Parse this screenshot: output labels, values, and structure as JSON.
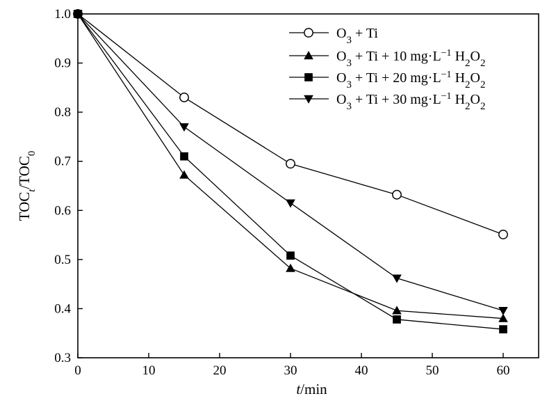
{
  "chart_data": {
    "type": "line",
    "x_label": {
      "italic": "t",
      "rest": "/min"
    },
    "y_label": {
      "base1": "TOC",
      "sub1": "t",
      "mid": "/TOC",
      "sub2": "0"
    },
    "xlim": [
      0,
      65
    ],
    "ylim": [
      0.3,
      1.0
    ],
    "x_ticks": [
      0,
      10,
      20,
      30,
      40,
      50,
      60
    ],
    "y_ticks": [
      0.3,
      0.4,
      0.5,
      0.6,
      0.7,
      0.8,
      0.9,
      1.0
    ],
    "x_tick_labels": [
      "0",
      "10",
      "20",
      "30",
      "40",
      "50",
      "60"
    ],
    "y_tick_labels": [
      "0.3",
      "0.4",
      "0.5",
      "0.6",
      "0.7",
      "0.8",
      "0.9",
      "1.0"
    ],
    "grid": false,
    "legend_position": "top-right",
    "x": [
      0,
      15,
      30,
      45,
      60
    ],
    "series": [
      {
        "marker": "circle-open",
        "color": "#000000",
        "legend": [
          {
            "t": "O"
          },
          {
            "t": "3",
            "sub": true
          },
          {
            "t": " + Ti"
          }
        ],
        "values": [
          1.0,
          0.83,
          0.695,
          0.632,
          0.551
        ]
      },
      {
        "marker": "triangle-up",
        "color": "#000000",
        "legend": [
          {
            "t": "O"
          },
          {
            "t": "3",
            "sub": true
          },
          {
            "t": " + Ti + 10 mg·L"
          },
          {
            "t": "−1",
            "sup": true
          },
          {
            "t": " H"
          },
          {
            "t": "2",
            "sub": true
          },
          {
            "t": "O"
          },
          {
            "t": "2",
            "sub": true
          }
        ],
        "values": [
          1.0,
          0.672,
          0.482,
          0.396,
          0.38
        ]
      },
      {
        "marker": "square",
        "color": "#000000",
        "legend": [
          {
            "t": "O"
          },
          {
            "t": "3",
            "sub": true
          },
          {
            "t": " + Ti + 20 mg·L"
          },
          {
            "t": "−1",
            "sup": true
          },
          {
            "t": "  H"
          },
          {
            "t": "2",
            "sub": true
          },
          {
            "t": "O"
          },
          {
            "t": "2",
            "sub": true
          }
        ],
        "values": [
          1.0,
          0.71,
          0.508,
          0.378,
          0.358
        ]
      },
      {
        "marker": "triangle-down",
        "color": "#000000",
        "legend": [
          {
            "t": "O"
          },
          {
            "t": "3",
            "sub": true
          },
          {
            "t": " + Ti + 30 mg·L"
          },
          {
            "t": "−1",
            "sup": true
          },
          {
            "t": "  H"
          },
          {
            "t": "2",
            "sub": true
          },
          {
            "t": "O"
          },
          {
            "t": "2",
            "sub": true
          }
        ],
        "values": [
          1.0,
          0.77,
          0.615,
          0.462,
          0.396
        ]
      }
    ]
  }
}
